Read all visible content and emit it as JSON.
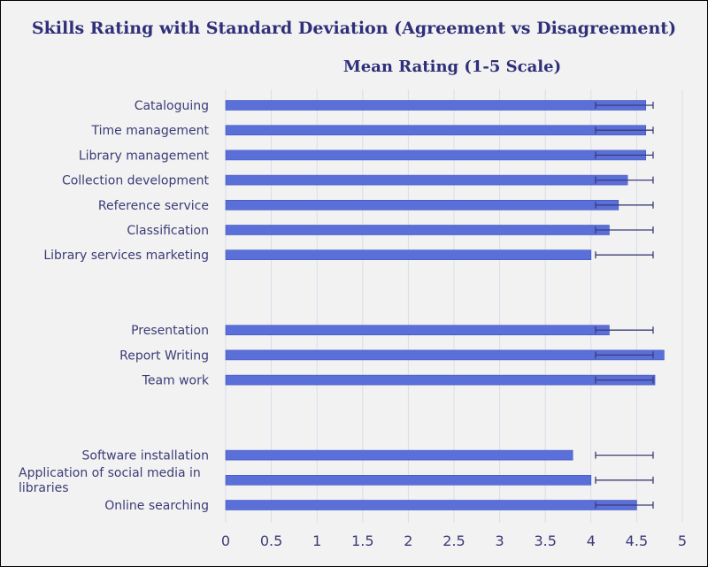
{
  "chart_data": {
    "type": "bar",
    "orientation": "horizontal",
    "title": "Skills Rating  with Standard Deviation (Agreement vs Disagreement)",
    "subtitle": "Mean Rating  (1-5 Scale)",
    "xlim": [
      0,
      5
    ],
    "x_ticks": [
      "0",
      "0.5",
      "1",
      "1.5",
      "2",
      "2.5",
      "3",
      "3.5",
      "4",
      "4.5",
      "5"
    ],
    "grid": true,
    "groups": [
      {
        "items": [
          {
            "label": "Cataloguing",
            "value": 4.6,
            "err_low": 4.05,
            "err_high": 4.68
          },
          {
            "label": "Time management",
            "value": 4.6,
            "err_low": 4.05,
            "err_high": 4.68
          },
          {
            "label": "Library management",
            "value": 4.6,
            "err_low": 4.05,
            "err_high": 4.68
          },
          {
            "label": "Collection development",
            "value": 4.4,
            "err_low": 4.05,
            "err_high": 4.68
          },
          {
            "label": "Reference service",
            "value": 4.3,
            "err_low": 4.05,
            "err_high": 4.68
          },
          {
            "label": "Classification",
            "value": 4.2,
            "err_low": 4.05,
            "err_high": 4.68
          },
          {
            "label": "Library services marketing",
            "value": 4.0,
            "err_low": 4.05,
            "err_high": 4.68
          }
        ]
      },
      {
        "items": [
          {
            "label": "Presentation",
            "value": 4.2,
            "err_low": 4.05,
            "err_high": 4.68
          },
          {
            "label": "Report Writing",
            "value": 4.8,
            "err_low": 4.05,
            "err_high": 4.68
          },
          {
            "label": "Team work",
            "value": 4.7,
            "err_low": 4.05,
            "err_high": 4.68
          }
        ]
      },
      {
        "items": [
          {
            "label": "Software installation",
            "value": 3.8,
            "err_low": 4.05,
            "err_high": 4.68
          },
          {
            "label": "Application of social media in libraries",
            "value": 4.0,
            "err_low": 4.05,
            "err_high": 4.68
          },
          {
            "label": "Online searching",
            "value": 4.5,
            "err_low": 4.05,
            "err_high": 4.68
          }
        ]
      }
    ],
    "colors": {
      "bar": "#5a6fd8",
      "bar_edge": "#3f54c4",
      "error_bar": "#3c3c78",
      "grid": "#dcdcec",
      "text": "#3c3c78"
    }
  }
}
